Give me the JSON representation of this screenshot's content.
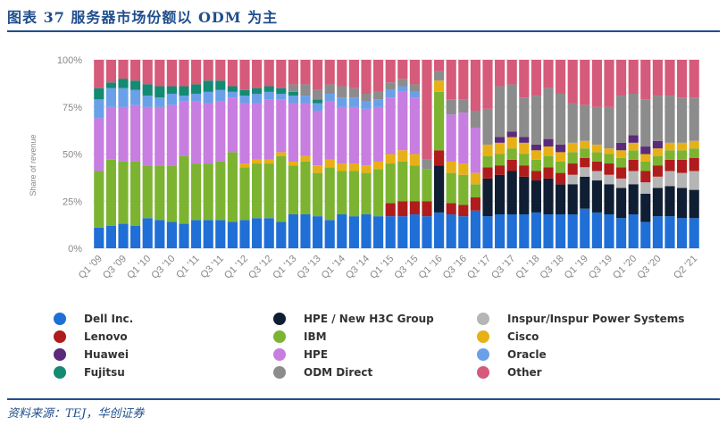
{
  "header": {
    "title": "图表 37   服务器市场份额以 ODM 为主"
  },
  "footer": {
    "source": "资料来源：TEJ，华创证券"
  },
  "chart_data": {
    "type": "bar",
    "stacked": true,
    "ylabel": "Share of revenue",
    "ylim": [
      0,
      100
    ],
    "yticks": [
      "0%",
      "25%",
      "50%",
      "75%",
      "100%"
    ],
    "grid": true,
    "legend_position": "bottom",
    "categories": [
      "Q1 '09",
      "Q2 '09",
      "Q3 '09",
      "Q4 '09",
      "Q1 '10",
      "Q2 '10",
      "Q3 '10",
      "Q4 '10",
      "Q1 '11",
      "Q2 '11",
      "Q3 '11",
      "Q4 '11",
      "Q1 '12",
      "Q2 '12",
      "Q3 '12",
      "Q4 '12",
      "Q1 '13",
      "Q2 '13",
      "Q3 '13",
      "Q4 '13",
      "Q1 '14",
      "Q2 '14",
      "Q3 '14",
      "Q4 '14",
      "Q1 '15",
      "Q2 '15",
      "Q3 '15",
      "Q4 '15",
      "Q1 '16",
      "Q2 '16",
      "Q3 '16",
      "Q4 '16",
      "Q1 '17",
      "Q2 '17",
      "Q3 '17",
      "Q4 '17",
      "Q1 '18",
      "Q2 '18",
      "Q3 '18",
      "Q4 '18",
      "Q1 '19",
      "Q2 '19",
      "Q3 '19",
      "Q4 '19",
      "Q1 '20",
      "Q2 '20",
      "Q3 '20",
      "Q4 '20",
      "Q1 '21",
      "Q2 '21"
    ],
    "tick_labels": [
      "Q1 '09",
      "Q3 '09",
      "Q1 '10",
      "Q3 '10",
      "Q1 '11",
      "Q3 '11",
      "Q1 '12",
      "Q3 '12",
      "Q1 '13",
      "Q3 '13",
      "Q1 '14",
      "Q3 '14",
      "Q1 '15",
      "Q3 '15",
      "Q1 '16",
      "Q3 '16",
      "Q1 '17",
      "Q3 '17",
      "Q1 '18",
      "Q3 '18",
      "Q1 '19",
      "Q3 '19",
      "Q1 '20",
      "Q3 '20",
      "Q2 '21"
    ],
    "series": [
      {
        "name": "Dell Inc.",
        "color": "#1f6fd6",
        "values": [
          11,
          12,
          13,
          12,
          16,
          15,
          14,
          13,
          15,
          15,
          15,
          14,
          15,
          16,
          16,
          14,
          18,
          18,
          17,
          15,
          18,
          17,
          18,
          17,
          17,
          17,
          18,
          17,
          19,
          18,
          17,
          20,
          17,
          18,
          18,
          18,
          19,
          18,
          18,
          18,
          21,
          19,
          18,
          16,
          18,
          14,
          17,
          17,
          16,
          16
        ]
      },
      {
        "name": "HPE / New H3C Group",
        "color": "#0f1e33",
        "values": [
          0,
          0,
          0,
          0,
          0,
          0,
          0,
          0,
          0,
          0,
          0,
          0,
          0,
          0,
          0,
          0,
          0,
          0,
          0,
          0,
          0,
          0,
          0,
          0,
          0,
          0,
          0,
          0,
          0,
          0,
          0,
          0,
          0,
          0,
          0,
          0,
          0,
          0,
          0,
          0,
          0,
          0,
          0,
          0,
          0,
          0,
          0,
          0,
          0,
          0
        ]
      },
      {
        "name": "Inspur/Inspur Power Systems",
        "color": "#b5b5b5",
        "values": [
          0,
          0,
          0,
          0,
          0,
          0,
          0,
          0,
          0,
          0,
          0,
          0,
          0,
          0,
          0,
          0,
          0,
          0,
          0,
          0,
          0,
          0,
          0,
          0,
          0,
          0,
          0,
          0,
          0,
          0,
          0,
          0,
          0,
          0,
          0,
          0,
          0,
          0,
          0,
          0,
          0,
          0,
          0,
          0,
          0,
          0,
          0,
          0,
          0,
          0
        ]
      },
      {
        "name": "Lenovo",
        "color": "#b01c1c",
        "values": [
          0,
          0,
          0,
          0,
          0,
          0,
          0,
          0,
          0,
          0,
          0,
          0,
          0,
          0,
          0,
          0,
          0,
          0,
          0,
          0,
          0,
          0,
          0,
          0,
          0,
          0,
          0,
          0,
          0,
          0,
          0,
          0,
          0,
          0,
          0,
          0,
          0,
          0,
          0,
          0,
          0,
          0,
          0,
          0,
          0,
          0,
          0,
          0,
          0,
          0
        ]
      },
      {
        "name": "IBM",
        "color": "#7cb432",
        "values": [
          30,
          35,
          33,
          34,
          28,
          29,
          30,
          36,
          30,
          30,
          31,
          37,
          28,
          29,
          29,
          35,
          26,
          28,
          23,
          28,
          23,
          24,
          22,
          25,
          21,
          21,
          19,
          17,
          31,
          8,
          8,
          0,
          0,
          0,
          0,
          0,
          0,
          0,
          0,
          0,
          0,
          0,
          0,
          0,
          0,
          0,
          0,
          0,
          0,
          0
        ]
      },
      {
        "name": "Cisco",
        "color": "#e8b017",
        "values": [
          0,
          0,
          0,
          0,
          0,
          0,
          0,
          0,
          0,
          0,
          0,
          0,
          2,
          2,
          2,
          2,
          2,
          3,
          4,
          4,
          4,
          4,
          4,
          4,
          5,
          6,
          6,
          0,
          6,
          6,
          6,
          6,
          6,
          6,
          6,
          6,
          5,
          5,
          5,
          5,
          4,
          4,
          3,
          4,
          4,
          4,
          4,
          4,
          4,
          4
        ]
      },
      {
        "name": "HPE",
        "color": "#c77ee0",
        "values": [
          28,
          28,
          29,
          30,
          31,
          31,
          32,
          29,
          33,
          32,
          32,
          29,
          32,
          30,
          32,
          28,
          31,
          28,
          29,
          31,
          30,
          30,
          30,
          29,
          30,
          31,
          30,
          0,
          0,
          0,
          0,
          0,
          0,
          0,
          0,
          0,
          0,
          0,
          0,
          0,
          0,
          0,
          0,
          0,
          0,
          0,
          0,
          0,
          0,
          0
        ]
      },
      {
        "name": "Oracle",
        "color": "#6aa0e8",
        "values": [
          10,
          10,
          10,
          8,
          6,
          5,
          6,
          3,
          4,
          6,
          6,
          3,
          4,
          5,
          4,
          3,
          4,
          4,
          4,
          4,
          5,
          5,
          4,
          4,
          4,
          3,
          3,
          0,
          0,
          0,
          0,
          0,
          0,
          0,
          0,
          0,
          0,
          0,
          0,
          0,
          0,
          0,
          0,
          0,
          0,
          0,
          0,
          0,
          0,
          0
        ]
      },
      {
        "name": "Huawei",
        "color": "#5c2a7a",
        "values": [
          0,
          0,
          0,
          0,
          0,
          0,
          0,
          0,
          0,
          0,
          0,
          0,
          0,
          0,
          0,
          0,
          0,
          0,
          0,
          0,
          0,
          0,
          0,
          0,
          0,
          0,
          0,
          0,
          0,
          0,
          0,
          0,
          0,
          3,
          3,
          3,
          3,
          4,
          4,
          0,
          0,
          0,
          0,
          4,
          4,
          4,
          4,
          0,
          0,
          0
        ]
      },
      {
        "name": "Fujitsu",
        "color": "#138a72",
        "values": [
          6,
          3,
          5,
          5,
          6,
          6,
          4,
          5,
          5,
          6,
          5,
          3,
          3,
          3,
          3,
          3,
          2,
          0,
          2,
          0,
          0,
          0,
          0,
          0,
          0,
          0,
          0,
          0,
          0,
          0,
          0,
          0,
          0,
          0,
          0,
          0,
          0,
          0,
          0,
          0,
          0,
          0,
          0,
          0,
          0,
          0,
          0,
          0,
          0,
          0
        ]
      },
      {
        "name": "ODM Direct",
        "color": "#8c8c8c",
        "values": [
          0,
          0,
          0,
          0,
          0,
          0,
          0,
          0,
          0,
          0,
          0,
          0,
          0,
          0,
          0,
          0,
          4,
          6,
          5,
          5,
          6,
          5,
          4,
          4,
          4,
          4,
          4,
          5,
          5,
          0,
          0,
          0,
          0,
          0,
          0,
          0,
          0,
          0,
          0,
          0,
          0,
          0,
          0,
          0,
          0,
          0,
          0,
          0,
          0,
          0
        ]
      },
      {
        "name": "Other",
        "color": "#d65a7a",
        "values": [
          15,
          12,
          10,
          11,
          13,
          14,
          14,
          14,
          13,
          11,
          11,
          14,
          16,
          15,
          14,
          15,
          13,
          13,
          16,
          13,
          14,
          15,
          18,
          17,
          19,
          18,
          20,
          22,
          21,
          23,
          24,
          25,
          25,
          12,
          12,
          16,
          16,
          12,
          12,
          22,
          21,
          21,
          21,
          15,
          18,
          21,
          19,
          20,
          20,
          20
        ]
      }
    ],
    "raw_series": {
      "HPE / New H3C Group": [
        0,
        0,
        0,
        0,
        0,
        0,
        0,
        0,
        0,
        0,
        0,
        0,
        0,
        0,
        0,
        0,
        0,
        0,
        0,
        0,
        0,
        0,
        0,
        0,
        0,
        0,
        0,
        0,
        25,
        0,
        0,
        0,
        20,
        21,
        23,
        20,
        17,
        19,
        16,
        16,
        17,
        17,
        16,
        16,
        16,
        15,
        15,
        16,
        16,
        15
      ],
      "Inspur/Inspur Power Systems": [
        0,
        0,
        0,
        0,
        0,
        0,
        0,
        0,
        0,
        0,
        0,
        0,
        0,
        0,
        0,
        0,
        0,
        0,
        0,
        0,
        0,
        0,
        0,
        0,
        0,
        0,
        0,
        0,
        0,
        0,
        0,
        0,
        0,
        0,
        0,
        0,
        0,
        0,
        0,
        5,
        5,
        5,
        5,
        5,
        7,
        6,
        6,
        8,
        8,
        10
      ],
      "Lenovo": [
        0,
        0,
        0,
        0,
        0,
        0,
        0,
        0,
        0,
        0,
        0,
        0,
        0,
        0,
        0,
        0,
        0,
        0,
        0,
        0,
        0,
        0,
        0,
        0,
        7,
        8,
        7,
        8,
        8,
        6,
        6,
        7,
        6,
        5,
        6,
        6,
        5,
        6,
        6,
        6,
        5,
        5,
        6,
        6,
        6,
        6,
        6,
        6,
        7,
        7
      ],
      "IBM_late": [
        0,
        0,
        0,
        0,
        0,
        0,
        0,
        0,
        0,
        0,
        0,
        0,
        0,
        0,
        0,
        0,
        0,
        0,
        0,
        0,
        0,
        0,
        0,
        0,
        0,
        0,
        0,
        0,
        0,
        8,
        8,
        7,
        6,
        6,
        6,
        6,
        6,
        6,
        6,
        6,
        5,
        5,
        5,
        5,
        5,
        5,
        5,
        5,
        5,
        5
      ],
      "HPE_late": [
        0,
        0,
        0,
        0,
        0,
        0,
        0,
        0,
        0,
        0,
        0,
        0,
        0,
        0,
        0,
        0,
        0,
        0,
        0,
        0,
        0,
        0,
        0,
        0,
        0,
        0,
        0,
        0,
        0,
        25,
        27,
        24,
        0,
        0,
        0,
        0,
        0,
        0,
        0,
        0,
        0,
        0,
        0,
        0,
        0,
        0,
        0,
        0,
        0,
        0
      ],
      "ODM_late": [
        0,
        0,
        0,
        0,
        0,
        0,
        0,
        0,
        0,
        0,
        0,
        0,
        0,
        0,
        0,
        0,
        0,
        0,
        0,
        0,
        0,
        0,
        0,
        0,
        0,
        0,
        0,
        0,
        0,
        8,
        7,
        9,
        19,
        27,
        25,
        21,
        26,
        27,
        27,
        21,
        19,
        20,
        22,
        25,
        22,
        25,
        24,
        25,
        24,
        23
      ]
    }
  },
  "legend": [
    {
      "label": "Dell Inc.",
      "color": "#1f6fd6"
    },
    {
      "label": "HPE / New H3C Group",
      "color": "#0f1e33"
    },
    {
      "label": "Inspur/Inspur Power Systems",
      "color": "#b5b5b5"
    },
    {
      "label": "Lenovo",
      "color": "#b01c1c"
    },
    {
      "label": "IBM",
      "color": "#7cb432"
    },
    {
      "label": "Cisco",
      "color": "#e8b017"
    },
    {
      "label": "Huawei",
      "color": "#5c2a7a"
    },
    {
      "label": "HPE",
      "color": "#c77ee0"
    },
    {
      "label": "Oracle",
      "color": "#6aa0e8"
    },
    {
      "label": "Fujitsu",
      "color": "#138a72"
    },
    {
      "label": "ODM Direct",
      "color": "#8c8c8c"
    },
    {
      "label": "Other",
      "color": "#d65a7a"
    }
  ]
}
